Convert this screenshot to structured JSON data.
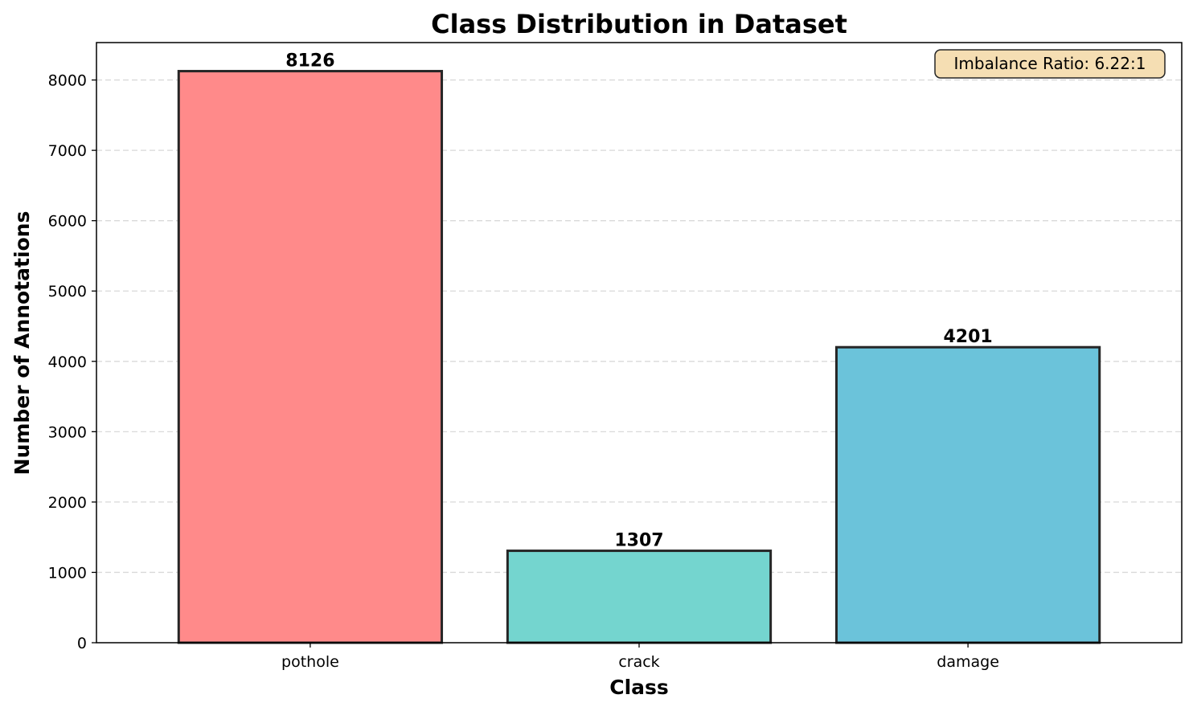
{
  "chart_data": {
    "type": "bar",
    "title": "Class Distribution in Dataset",
    "xlabel": "Class",
    "ylabel": "Number of Annotations",
    "categories": [
      "pothole",
      "crack",
      "damage"
    ],
    "values": [
      8126,
      1307,
      4201
    ],
    "data_labels": [
      "8126",
      "1307",
      "4201"
    ],
    "colors": [
      "#ff8a8a",
      "#74d5cf",
      "#6bc3da"
    ],
    "edge_color": "#262626",
    "ylim": [
      0,
      8532
    ],
    "yticks": [
      0,
      1000,
      2000,
      3000,
      4000,
      5000,
      6000,
      7000,
      8000
    ],
    "ytick_labels": [
      "0",
      "1000",
      "2000",
      "3000",
      "4000",
      "5000",
      "6000",
      "7000",
      "8000"
    ],
    "grid": "y-dashed",
    "annotation": {
      "text": "Imbalance Ratio: 6.22:1",
      "placement": "top-right",
      "background": "#f5deb3"
    }
  }
}
